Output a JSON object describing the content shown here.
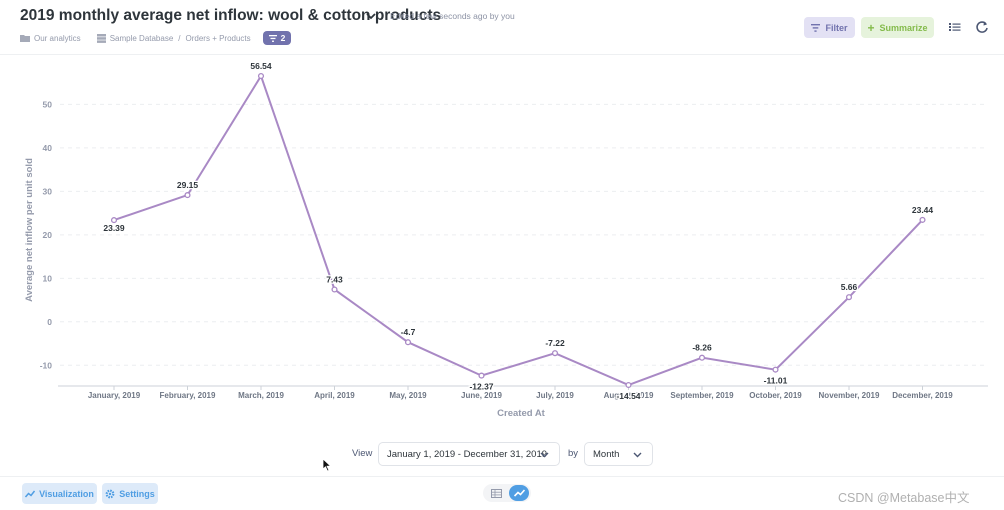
{
  "header": {
    "title": "2019 monthly average net inflow: wool & cotton products",
    "edited": "Edited a few seconds ago by you",
    "breadcrumb": {
      "collection": "Our analytics",
      "database": "Sample Database",
      "separator": "/",
      "table": "Orders + Products"
    },
    "filter_count": "2",
    "filter_label": "Filter",
    "summarize_label": "Summarize"
  },
  "chart_data": {
    "type": "line",
    "title": "",
    "categories": [
      "January, 2019",
      "February, 2019",
      "March, 2019",
      "April, 2019",
      "May, 2019",
      "June, 2019",
      "July, 2019",
      "August, 2019",
      "September, 2019",
      "October, 2019",
      "November, 2019",
      "December, 2019"
    ],
    "series": [
      {
        "values": [
          23.39,
          29.15,
          56.54,
          7.43,
          -4.7,
          -12.37,
          -7.22,
          -14.54,
          -8.26,
          -11.01,
          5.66,
          23.44
        ]
      }
    ],
    "data_labels": [
      "23.39",
      "29.15",
      "56.54",
      "7.43",
      "-4.7",
      "-12.37",
      "-7.22",
      "-14.54",
      "-8.26",
      "-11.01",
      "5.66",
      "23.44"
    ],
    "xlabel": "Created At",
    "ylabel": "Average net inflow per unit sold",
    "yticks": [
      50,
      40,
      30,
      20,
      10,
      0,
      -10
    ],
    "ylim": [
      -14.54,
      56.54
    ],
    "grid": true,
    "color": "#a989c5"
  },
  "controls": {
    "view_label": "View",
    "date_range": "January 1, 2019 - December 31, 2019",
    "by_label": "by",
    "granularity": "Month"
  },
  "footer": {
    "visualization_label": "Visualization",
    "settings_label": "Settings"
  },
  "watermark": "CSDN @Metabase中文"
}
